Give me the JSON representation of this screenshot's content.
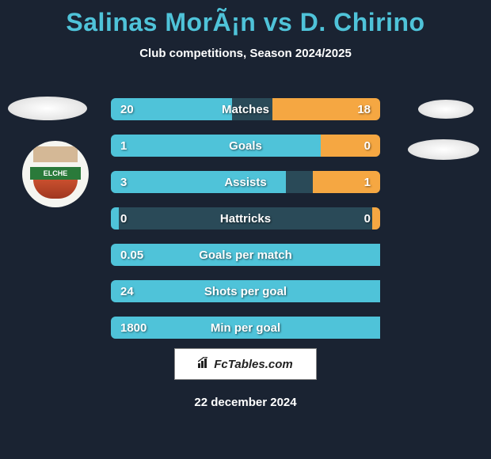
{
  "title": "Salinas MorÃ¡n vs D. Chirino",
  "subtitle": "Club competitions, Season 2024/2025",
  "crest_text": "ELCHE",
  "stats": [
    {
      "label": "Matches",
      "left_val": "20",
      "right_val": "18",
      "left_pct": 45,
      "right_pct": 40
    },
    {
      "label": "Goals",
      "left_val": "1",
      "right_val": "0",
      "left_pct": 78,
      "right_pct": 22
    },
    {
      "label": "Assists",
      "left_val": "3",
      "right_val": "1",
      "left_pct": 65,
      "right_pct": 25
    },
    {
      "label": "Hattricks",
      "left_val": "0",
      "right_val": "0",
      "left_pct": 3,
      "right_pct": 3
    },
    {
      "label": "Goals per match",
      "left_val": "0.05",
      "right_val": "",
      "left_pct": 100,
      "right_pct": 0
    },
    {
      "label": "Shots per goal",
      "left_val": "24",
      "right_val": "",
      "left_pct": 100,
      "right_pct": 0
    },
    {
      "label": "Min per goal",
      "left_val": "1800",
      "right_val": "",
      "left_pct": 100,
      "right_pct": 0
    }
  ],
  "colors": {
    "bg": "#1a2332",
    "accent_left": "#4fc3d9",
    "accent_right": "#f5a742",
    "bar_track": "#2a4a58",
    "text": "#ffffff"
  },
  "attribution": "FcTables.com",
  "date": "22 december 2024"
}
